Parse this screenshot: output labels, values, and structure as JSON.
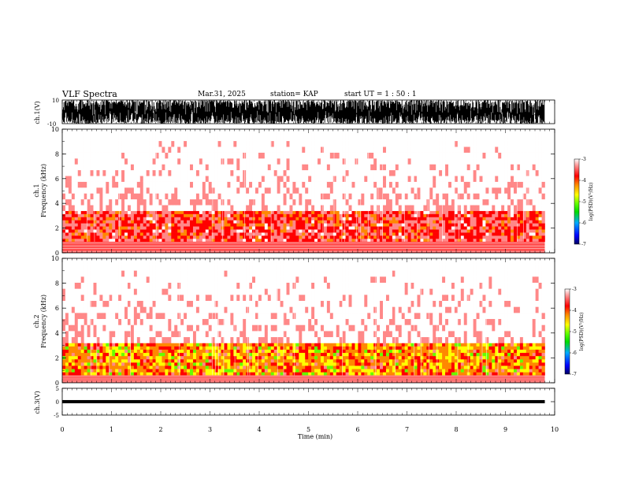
{
  "header": {
    "title": "VLF Spectra",
    "date": "Mar.31, 2025",
    "station": "station= KAP",
    "start_ut": "start UT =  1 : 50 : 1"
  },
  "chart_data": [
    {
      "type": "line",
      "name": "ch1-waveform",
      "ylabel": "ch.1(V)",
      "ylim": [
        -10,
        10
      ],
      "yticks": [
        "10",
        "-10"
      ],
      "description_values": "amplitude saturating near ±10 V throughout 0–9.8 min"
    },
    {
      "type": "heatmap",
      "name": "ch1-spectrogram",
      "ylabel": "ch.1\nFrequency (kHz)",
      "ylabel_lines": [
        "ch.1",
        "Frequency (kHz)"
      ],
      "xlim": [
        0,
        10
      ],
      "ylim": [
        0,
        10
      ],
      "yticks": [
        "0",
        "2",
        "4",
        "6",
        "8",
        "10"
      ],
      "data_end_min": 9.8,
      "bands_khz": [
        {
          "from": 0.9,
          "to": 3.4,
          "level": -4.0
        },
        {
          "from": 3.4,
          "to": 10,
          "level": -3.5
        }
      ],
      "colorbar": {
        "label": "log(PSD)(V²/Hz)",
        "ticks": [
          "-3",
          "-4",
          "-5",
          "-6",
          "-7"
        ],
        "range": [
          -7,
          -3
        ],
        "colors": [
          "#000080",
          "#0000ff",
          "#00aaff",
          "#00dd00",
          "#66ff00",
          "#ffff00",
          "#ff8800",
          "#ff0000",
          "#ff8888",
          "#ffffff"
        ]
      }
    },
    {
      "type": "heatmap",
      "name": "ch2-spectrogram",
      "ylabel": "ch.2\nFrequency (kHz)",
      "ylabel_lines": [
        "ch.2",
        "Frequency (kHz)"
      ],
      "xlim": [
        0,
        10
      ],
      "ylim": [
        0,
        10
      ],
      "yticks": [
        "0",
        "2",
        "4",
        "6",
        "8",
        "10"
      ],
      "data_end_min": 9.8,
      "bands_khz": [
        {
          "from": 0.6,
          "to": 3.2,
          "level": -4.6
        },
        {
          "from": 3.2,
          "to": 10,
          "level": -3.5
        }
      ],
      "colorbar": {
        "label": "log(PSD)(V²/Hz)",
        "ticks": [
          "-3",
          "-4",
          "-5",
          "-6",
          "-7"
        ],
        "range": [
          -7,
          -3
        ],
        "colors": [
          "#000080",
          "#0000ff",
          "#00aaff",
          "#00dd00",
          "#66ff00",
          "#ffff00",
          "#ff8800",
          "#ff0000",
          "#ff8888",
          "#ffffff"
        ]
      }
    },
    {
      "type": "line",
      "name": "ch3-waveform",
      "ylabel": "ch.3(V)",
      "ylim": [
        -5,
        5
      ],
      "yticks": [
        "5",
        "0",
        "-5"
      ],
      "band": [
        -0.6,
        0.6
      ],
      "xlim": [
        0,
        10
      ],
      "xticks": [
        "0",
        "1",
        "2",
        "3",
        "4",
        "5",
        "6",
        "7",
        "8",
        "9",
        "10"
      ],
      "xlabel": "Time (min)"
    }
  ]
}
